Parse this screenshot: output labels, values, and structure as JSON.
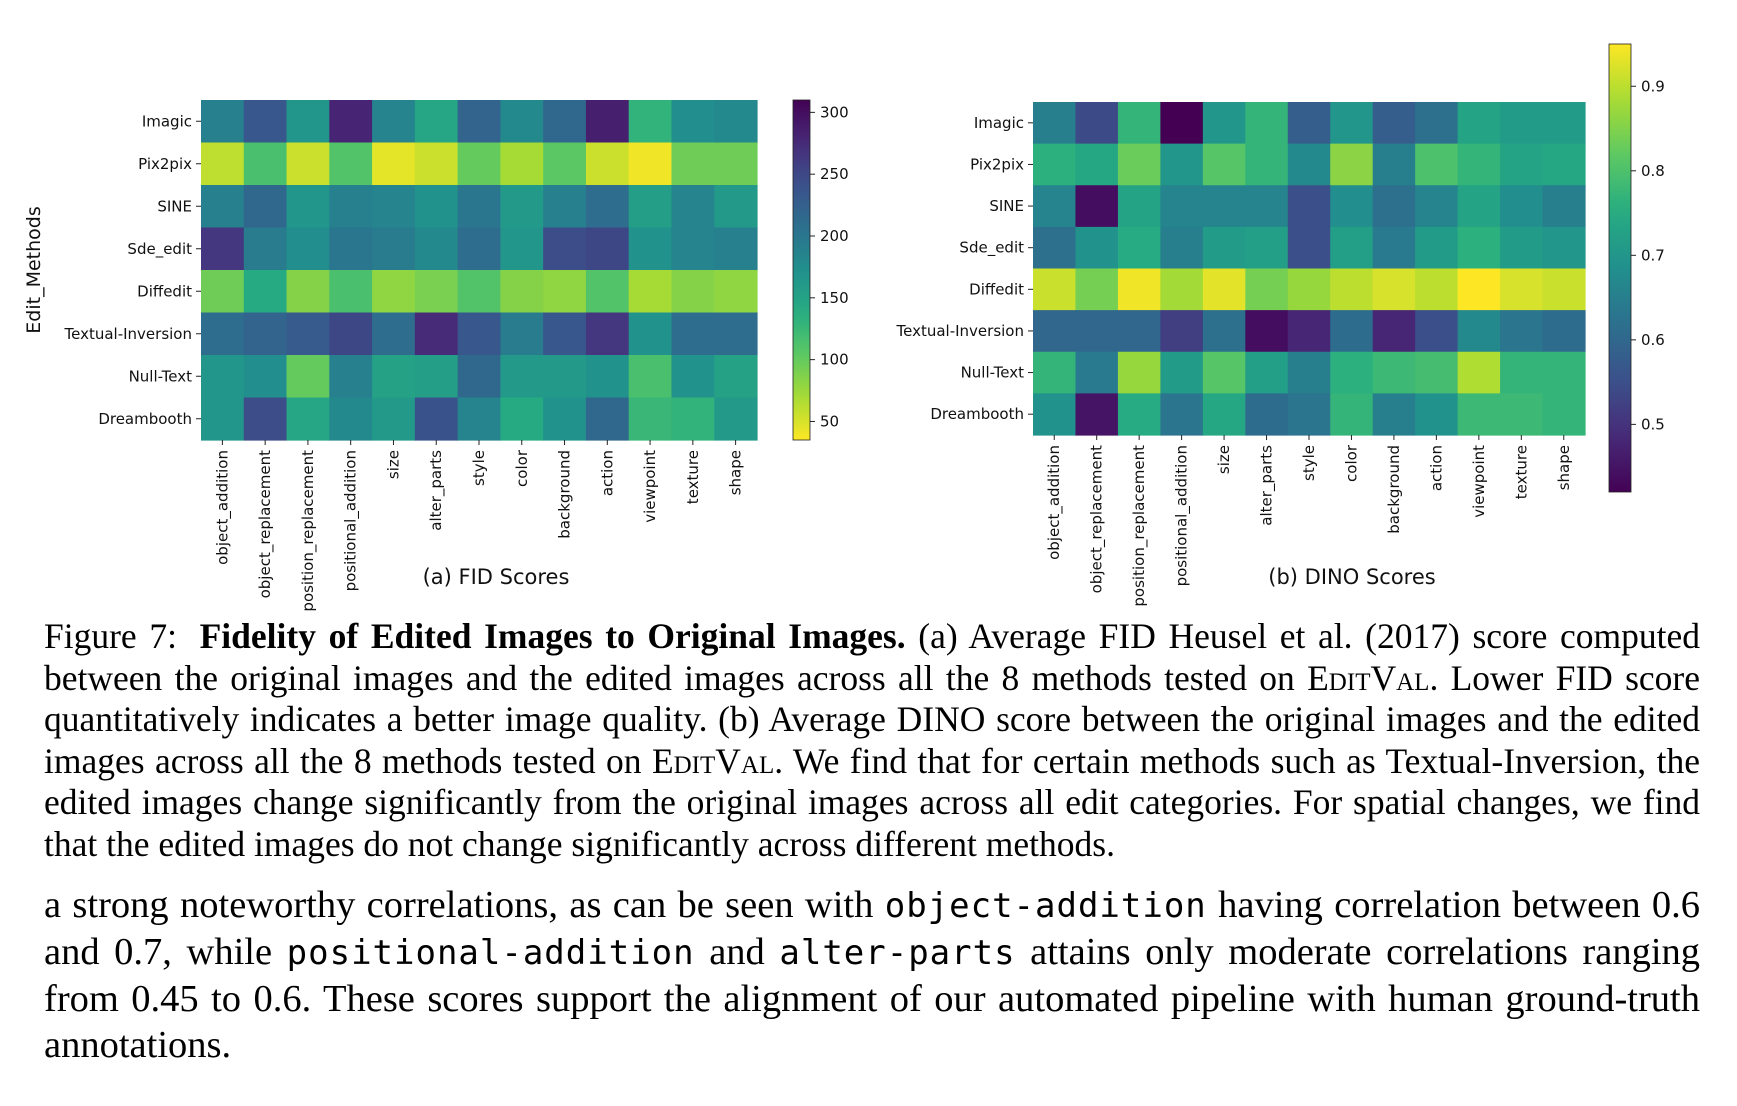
{
  "chart_data": [
    {
      "type": "heatmap",
      "id": "fid",
      "caption": "(a) FID Scores",
      "ylabel": "Edit_Methods",
      "x": [
        "object_addition",
        "object_replacement",
        "position_replacement",
        "positional_addition",
        "size",
        "alter_parts",
        "style",
        "color",
        "background",
        "action",
        "viewpoint",
        "texture",
        "shape"
      ],
      "y": [
        "Imagic",
        "Pix2pix",
        "SINE",
        "Sde_edit",
        "Diffedit",
        "Textual-Inversion",
        "Null-Text",
        "Dreambooth"
      ],
      "values": [
        [
          190,
          235,
          165,
          280,
          185,
          145,
          220,
          180,
          215,
          285,
          130,
          175,
          180
        ],
        [
          60,
          115,
          55,
          110,
          45,
          55,
          100,
          70,
          105,
          55,
          40,
          95,
          95
        ],
        [
          190,
          215,
          165,
          190,
          185,
          170,
          200,
          160,
          190,
          210,
          155,
          185,
          160
        ],
        [
          265,
          195,
          175,
          200,
          195,
          180,
          210,
          165,
          245,
          250,
          170,
          185,
          190
        ],
        [
          95,
          140,
          85,
          115,
          80,
          90,
          110,
          85,
          80,
          110,
          70,
          85,
          80
        ],
        [
          210,
          220,
          230,
          250,
          210,
          275,
          235,
          195,
          235,
          265,
          170,
          210,
          210
        ],
        [
          165,
          175,
          100,
          190,
          150,
          155,
          215,
          160,
          160,
          170,
          115,
          170,
          150
        ],
        [
          165,
          245,
          145,
          180,
          160,
          240,
          185,
          140,
          170,
          215,
          125,
          130,
          160
        ]
      ],
      "colorbar": {
        "min": 35,
        "max": 310,
        "ticks": [
          300,
          250,
          200,
          150,
          100,
          50
        ],
        "reversed": true
      }
    },
    {
      "type": "heatmap",
      "id": "dino",
      "caption": "(b) DINO Scores",
      "x": [
        "object_addition",
        "object_replacement",
        "position_replacement",
        "positional_addition",
        "size",
        "alter_parts",
        "style",
        "color",
        "background",
        "action",
        "viewpoint",
        "texture",
        "shape"
      ],
      "y": [
        "Imagic",
        "Pix2pix",
        "SINE",
        "Sde_edit",
        "Diffedit",
        "Textual-Inversion",
        "Null-Text",
        "Dreambooth"
      ],
      "values": [
        [
          0.65,
          0.54,
          0.77,
          0.42,
          0.7,
          0.77,
          0.58,
          0.7,
          0.58,
          0.62,
          0.73,
          0.71,
          0.71
        ],
        [
          0.76,
          0.74,
          0.83,
          0.7,
          0.81,
          0.77,
          0.67,
          0.86,
          0.65,
          0.8,
          0.77,
          0.73,
          0.74
        ],
        [
          0.66,
          0.44,
          0.73,
          0.66,
          0.66,
          0.66,
          0.55,
          0.68,
          0.62,
          0.66,
          0.73,
          0.68,
          0.65
        ],
        [
          0.62,
          0.69,
          0.75,
          0.65,
          0.71,
          0.72,
          0.55,
          0.72,
          0.64,
          0.71,
          0.76,
          0.71,
          0.7
        ],
        [
          0.91,
          0.84,
          0.94,
          0.88,
          0.93,
          0.84,
          0.87,
          0.9,
          0.92,
          0.9,
          0.95,
          0.92,
          0.91
        ],
        [
          0.6,
          0.6,
          0.6,
          0.52,
          0.62,
          0.44,
          0.48,
          0.61,
          0.48,
          0.55,
          0.67,
          0.63,
          0.61
        ],
        [
          0.77,
          0.64,
          0.87,
          0.71,
          0.81,
          0.72,
          0.65,
          0.76,
          0.78,
          0.79,
          0.89,
          0.77,
          0.77
        ],
        [
          0.69,
          0.45,
          0.75,
          0.63,
          0.74,
          0.61,
          0.63,
          0.77,
          0.65,
          0.69,
          0.78,
          0.78,
          0.77
        ]
      ],
      "colorbar": {
        "min": 0.42,
        "max": 0.95,
        "ticks": [
          0.9,
          0.8,
          0.7,
          0.6,
          0.5
        ],
        "reversed": false
      }
    }
  ],
  "caption": {
    "label": "Figure 7:",
    "bold": "Fidelity of Edited Images to Original Images.",
    "seg1": "(a) Average FID Heusel et al. (2017) score computed between the original images and the edited images across all the 8 methods tested on",
    "sc1": "EditVal",
    "seg2": ". Lower FID score quantitatively indicates a better image quality. (b) Average DINO score between the original images and the edited images across all the 8 methods tested on",
    "sc2": "EditVal",
    "seg3": ". We find that for certain methods such as Textual-Inversion, the edited images change significantly from the original images across all edit categories. For spatial changes, we find that the edited images do not change significantly across different methods."
  },
  "body": {
    "p1": "a strong noteworthy correlations, as can be seen with",
    "code1": "object-addition",
    "p2": "having correlation between 0.6 and 0.7, while",
    "code2": "positional-addition",
    "p3": "and",
    "code3": "alter-parts",
    "p4": "attains only moderate correlations ranging from 0.45 to 0.6. These scores support the alignment of our automated pipeline with human ground-truth annotations."
  }
}
